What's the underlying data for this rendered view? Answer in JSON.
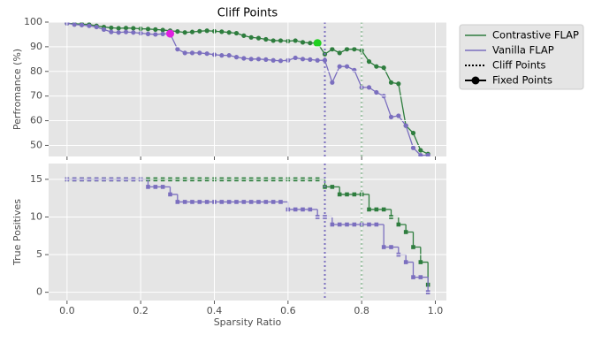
{
  "chart_data": [
    {
      "type": "line",
      "title": "Cliff Points",
      "ylabel": "Perfromance (%)",
      "x": [
        0,
        0.02,
        0.04,
        0.06,
        0.08,
        0.1,
        0.12,
        0.14,
        0.16,
        0.18,
        0.2,
        0.22,
        0.24,
        0.26,
        0.28,
        0.3,
        0.32,
        0.34,
        0.36,
        0.38,
        0.4,
        0.42,
        0.44,
        0.46,
        0.48,
        0.5,
        0.52,
        0.54,
        0.56,
        0.58,
        0.6,
        0.62,
        0.64,
        0.66,
        0.68,
        0.7,
        0.72,
        0.74,
        0.76,
        0.78,
        0.8,
        0.82,
        0.84,
        0.86,
        0.88,
        0.9,
        0.92,
        0.94,
        0.96,
        0.98
      ],
      "series": [
        {
          "name": "Contrastive FLAP",
          "color": "#2e7d3e",
          "values": [
            99.5,
            99.3,
            99.2,
            99,
            98.5,
            98,
            97.7,
            97.5,
            97.6,
            97.5,
            97.3,
            97.2,
            97,
            96.8,
            96.5,
            96.2,
            95.8,
            96,
            96.3,
            96.5,
            96.3,
            96.1,
            95.8,
            95.5,
            94.5,
            93.8,
            93.5,
            93,
            92.5,
            92.5,
            92.3,
            92.5,
            91.8,
            91.5,
            91.5,
            87,
            89,
            87.5,
            89,
            89,
            88.5,
            84,
            82,
            81.5,
            75.5,
            75,
            58,
            55,
            48,
            46.5
          ]
        },
        {
          "name": "Vanilla FLAP",
          "color": "#7b6fbf",
          "values": [
            99.5,
            99,
            98.8,
            98.5,
            98,
            97,
            96,
            95.8,
            96,
            95.8,
            95.5,
            95.2,
            95,
            95.2,
            95.3,
            89,
            87.5,
            87.5,
            87.5,
            87.2,
            86.8,
            86.5,
            86.5,
            85.8,
            85.3,
            85,
            85,
            84.8,
            84.5,
            84.3,
            84.5,
            85.5,
            85,
            84.8,
            84.5,
            84.5,
            75.5,
            82,
            82,
            80.5,
            73.5,
            73.5,
            71.5,
            70,
            61.5,
            62,
            58,
            49,
            46,
            46
          ]
        }
      ],
      "cliff_points": {
        "name": "Cliff Points",
        "x": [
          0.7,
          0.8
        ],
        "colors": [
          "#7b6fbf",
          "#2e7d3e"
        ]
      },
      "fixed_points": {
        "name": "Fixed Points",
        "x": [
          0.28,
          0.68
        ],
        "values": [
          95.3,
          91.5
        ],
        "colors": [
          "#e020e0",
          "#20d020"
        ]
      },
      "xlim": [
        -0.05,
        1.03
      ],
      "ylim": [
        45.5,
        100
      ],
      "yticks": [
        50,
        60,
        70,
        80,
        90,
        100
      ],
      "grid": true
    },
    {
      "type": "step",
      "xlabel": "Sparsity Ratio",
      "ylabel": "True Positives",
      "x": [
        0,
        0.02,
        0.04,
        0.06,
        0.08,
        0.1,
        0.12,
        0.14,
        0.16,
        0.18,
        0.2,
        0.22,
        0.24,
        0.26,
        0.28,
        0.3,
        0.32,
        0.34,
        0.36,
        0.38,
        0.4,
        0.42,
        0.44,
        0.46,
        0.48,
        0.5,
        0.52,
        0.54,
        0.56,
        0.58,
        0.6,
        0.62,
        0.64,
        0.66,
        0.68,
        0.7,
        0.72,
        0.74,
        0.76,
        0.78,
        0.8,
        0.82,
        0.84,
        0.86,
        0.88,
        0.9,
        0.92,
        0.94,
        0.96,
        0.98
      ],
      "series": [
        {
          "name": "Contrastive FLAP",
          "color": "#2e7d3e",
          "values": [
            15,
            15,
            15,
            15,
            15,
            15,
            15,
            15,
            15,
            15,
            15,
            15,
            15,
            15,
            15,
            15,
            15,
            15,
            15,
            15,
            15,
            15,
            15,
            15,
            15,
            15,
            15,
            15,
            15,
            15,
            15,
            15,
            15,
            15,
            15,
            14,
            14,
            13,
            13,
            13,
            13,
            11,
            11,
            11,
            10,
            9,
            8,
            6,
            4,
            1
          ]
        },
        {
          "name": "Vanilla FLAP",
          "color": "#7b6fbf",
          "values": [
            15,
            15,
            15,
            15,
            15,
            15,
            15,
            15,
            15,
            15,
            15,
            14,
            14,
            14,
            13,
            12,
            12,
            12,
            12,
            12,
            12,
            12,
            12,
            12,
            12,
            12,
            12,
            12,
            12,
            12,
            11,
            11,
            11,
            11,
            10,
            10,
            9,
            9,
            9,
            9,
            9,
            9,
            9,
            6,
            6,
            5,
            4,
            2,
            2,
            0
          ]
        }
      ],
      "xlim": [
        -0.05,
        1.03
      ],
      "ylim": [
        -1.1,
        17.1
      ],
      "xticks": [
        {
          "value": 0,
          "label": "0.0"
        },
        0.2,
        0.4,
        0.6,
        0.8,
        {
          "value": 1,
          "label": "1.0"
        }
      ],
      "yticks": [
        0,
        5,
        10,
        15
      ],
      "grid": true
    }
  ]
}
